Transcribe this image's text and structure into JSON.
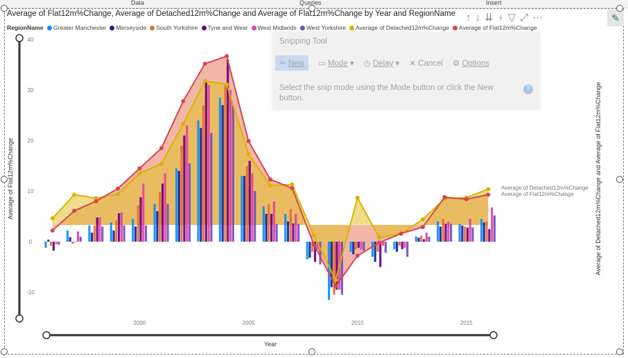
{
  "ribbon": {
    "tabs": [
      "Data",
      "Queries",
      "Insert"
    ]
  },
  "title": "Average of Flat12m%Change, Average of Detached12m%Change and Average of Flat12m%Change by Year and RegionName",
  "legend": {
    "label": "RegionName",
    "items": [
      {
        "name": "Greater Manchester",
        "color": "#118dff"
      },
      {
        "name": "Merseyside",
        "color": "#12239e"
      },
      {
        "name": "South Yorkshire",
        "color": "#e66c37"
      },
      {
        "name": "Tyne and Wear",
        "color": "#6b007b"
      },
      {
        "name": "West Midlands",
        "color": "#e044a7"
      },
      {
        "name": "West Yorkshire",
        "color": "#744ec2"
      },
      {
        "name": "Average of Detached12m%Change",
        "color": "#d9b300"
      },
      {
        "name": "Average of Flat12m%Change",
        "color": "#d64550"
      }
    ]
  },
  "snipping_tool": {
    "title": "Snipping Tool",
    "new": "New",
    "mode": "Mode",
    "delay": "Delay",
    "cancel": "Cancel",
    "options": "Options",
    "message": "Select the snip mode using the Mode button or click the New button.",
    "help": "?"
  },
  "chart_data": {
    "type": "bar",
    "xlabel": "Year",
    "ylabel_left": "Average of Flat12m%Change",
    "ylabel_right": "Average of Detached12m%Change and Average of Flat12m%Change",
    "ylim": [
      -14,
      40
    ],
    "y_ticks": [
      -10,
      0,
      10,
      20,
      30,
      40
    ],
    "x_ticks": [
      2000,
      2005,
      2010,
      2015
    ],
    "categories": [
      1996,
      1997,
      1998,
      1999,
      2000,
      2001,
      2002,
      2003,
      2004,
      2005,
      2006,
      2007,
      2008,
      2009,
      2010,
      2011,
      2012,
      2013,
      2014,
      2015,
      2016
    ],
    "series": [
      {
        "name": "Greater Manchester",
        "values": [
          -1.2,
          2.2,
          3.2,
          3.8,
          4.5,
          7.5,
          14.5,
          24.0,
          28.5,
          13.0,
          7.0,
          5.5,
          -3.5,
          -11.5,
          -2.0,
          -3.0,
          -1.5,
          1.0,
          4.0,
          3.5,
          4.5
        ]
      },
      {
        "name": "Merseyside",
        "values": [
          0.4,
          0.9,
          1.8,
          2.2,
          3.0,
          6.0,
          14.0,
          22.5,
          27.0,
          13.0,
          5.5,
          4.0,
          -3.2,
          -9.0,
          -2.5,
          -4.0,
          -2.0,
          0.8,
          3.0,
          3.2,
          3.8
        ]
      },
      {
        "name": "South Yorkshire",
        "values": [
          -0.8,
          -0.4,
          3.2,
          4.2,
          7.2,
          9.8,
          19.0,
          27.0,
          31.0,
          15.0,
          7.5,
          6.5,
          -2.0,
          -10.5,
          -1.5,
          -2.0,
          -0.8,
          1.2,
          4.5,
          3.0,
          4.0
        ]
      },
      {
        "name": "Tyne and Wear",
        "values": [
          -1.8,
          0.0,
          4.8,
          5.6,
          8.8,
          11.5,
          21.0,
          31.5,
          36.0,
          16.0,
          5.5,
          3.6,
          -4.0,
          -9.5,
          -1.2,
          -5.0,
          -1.5,
          0.5,
          3.5,
          2.8,
          2.5
        ]
      },
      {
        "name": "West Midlands",
        "values": [
          -0.5,
          2.0,
          4.8,
          5.8,
          11.5,
          13.5,
          23.0,
          31.0,
          30.0,
          13.5,
          8.0,
          5.5,
          -1.5,
          -9.5,
          -1.6,
          -0.8,
          -1.2,
          1.8,
          4.0,
          4.5,
          6.8
        ]
      },
      {
        "name": "West Yorkshire",
        "values": [
          -0.6,
          1.0,
          3.0,
          3.2,
          3.2,
          7.5,
          15.5,
          21.5,
          27.0,
          10.0,
          3.5,
          3.5,
          -4.5,
          -10.5,
          -1.8,
          -2.2,
          -3.0,
          1.0,
          3.5,
          2.8,
          5.2
        ]
      },
      {
        "name": "Average of Detached12m%Change",
        "kind": "area-line",
        "values": [
          4.6,
          9.3,
          8.6,
          9.4,
          13.5,
          15.4,
          23.3,
          31.8,
          31.1,
          17.3,
          11.1,
          11.3,
          1.2,
          -7.6,
          8.7,
          0.8,
          1.6,
          4.4,
          8.5,
          8.7,
          10.4
        ]
      },
      {
        "name": "Average of Flat12m%Change",
        "kind": "area-line",
        "values": [
          2.2,
          6.1,
          8.0,
          10.5,
          14.5,
          18.5,
          27.8,
          35.2,
          36.7,
          19.9,
          12.3,
          10.6,
          -0.6,
          -8.8,
          -2.8,
          -0.2,
          1.6,
          2.9,
          8.8,
          8.4,
          9.3
        ]
      }
    ],
    "line_labels": [
      "Average of Detached12m%Change",
      "Average of Flat12m%Change"
    ]
  }
}
